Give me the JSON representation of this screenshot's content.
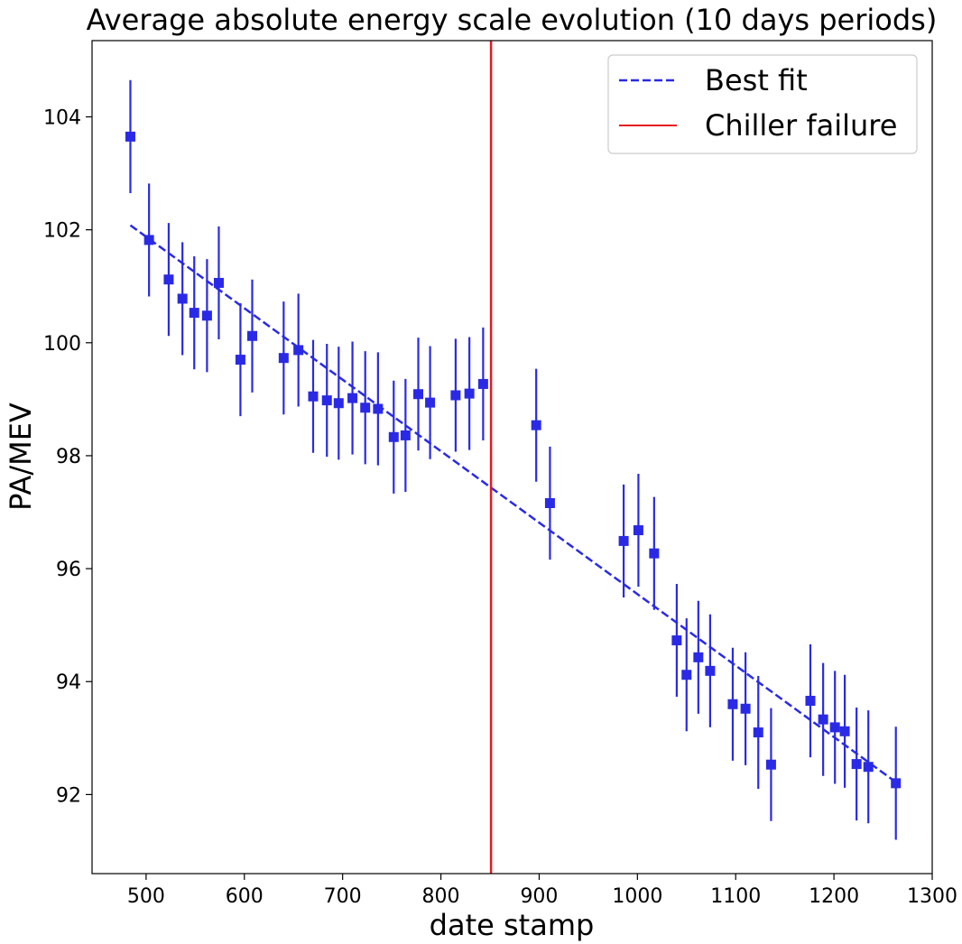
{
  "chart_data": {
    "type": "scatter",
    "title": "Average absolute energy scale evolution (10 days periods)",
    "xlabel": "date stamp",
    "ylabel": "PA/MEV",
    "xlim": [
      445,
      1300
    ],
    "ylim": [
      90.6,
      105.35
    ],
    "xticks": [
      500,
      600,
      700,
      800,
      900,
      1000,
      1100,
      1200,
      1300
    ],
    "yticks": [
      92,
      94,
      96,
      98,
      100,
      102,
      104
    ],
    "grid": false,
    "legend_position": "top-right",
    "legend": [
      "Best fit",
      "Chiller failure"
    ],
    "series": [
      {
        "name": "data",
        "color": "#2a2ae6",
        "x": [
          484,
          503,
          523,
          537,
          549,
          562,
          574,
          596,
          608,
          640,
          655,
          670,
          684,
          696,
          710,
          723,
          736,
          752,
          764,
          777,
          789,
          815,
          829,
          843,
          897,
          911,
          986,
          1001,
          1017,
          1040,
          1050,
          1062,
          1074,
          1097,
          1110,
          1123,
          1136,
          1176,
          1189,
          1201,
          1211,
          1223,
          1235,
          1263
        ],
        "y": [
          103.65,
          101.82,
          101.12,
          100.78,
          100.53,
          100.48,
          101.06,
          99.7,
          100.12,
          99.73,
          99.87,
          99.05,
          98.98,
          98.93,
          99.02,
          98.85,
          98.83,
          98.33,
          98.36,
          99.09,
          98.94,
          99.07,
          99.1,
          99.27,
          98.54,
          97.16,
          96.49,
          96.68,
          96.27,
          94.73,
          94.12,
          94.43,
          94.19,
          93.6,
          93.52,
          93.1,
          92.53,
          93.66,
          93.33,
          93.19,
          93.12,
          92.54,
          92.49,
          92.2
        ],
        "yerr": 1.0
      },
      {
        "name": "Best fit",
        "style": "dashed",
        "color": "#2a2ae6",
        "x": [
          484,
          1263
        ],
        "y": [
          102.08,
          92.22
        ]
      }
    ],
    "vline": {
      "name": "Chiller failure",
      "x": 851,
      "color": "#e8191e"
    }
  }
}
